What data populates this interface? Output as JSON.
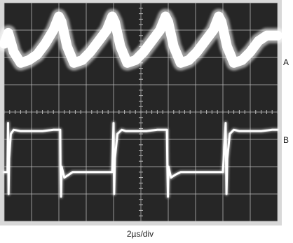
{
  "chart_data": {
    "type": "line",
    "title": "",
    "xlabel": "2µs/div",
    "ylabel": "",
    "grid": true,
    "x_divisions": 10,
    "y_divisions": 8,
    "period_div": 1.95,
    "series": [
      {
        "name": "A",
        "color": "#ffffff",
        "x": [
          0.0,
          0.15,
          0.35,
          0.6,
          0.9,
          1.2,
          1.5,
          1.8,
          2.0,
          2.1,
          2.3,
          2.55,
          2.85,
          3.15,
          3.45,
          3.75,
          3.95,
          4.05,
          4.25,
          4.5,
          4.8,
          5.1,
          5.4,
          5.7,
          5.9,
          6.0,
          6.2,
          6.45,
          6.75,
          7.05,
          7.35,
          7.65,
          7.85,
          7.95,
          8.15,
          8.4,
          8.7,
          9.0,
          9.3,
          9.6,
          10.0
        ],
        "y": [
          6.5,
          6.9,
          6.2,
          5.8,
          5.9,
          6.1,
          6.5,
          7.0,
          7.5,
          7.3,
          6.4,
          5.8,
          5.9,
          6.2,
          6.6,
          7.0,
          7.5,
          7.3,
          6.4,
          5.8,
          5.9,
          6.2,
          6.6,
          7.0,
          7.5,
          7.3,
          6.4,
          5.8,
          5.9,
          6.2,
          6.6,
          7.0,
          7.5,
          7.3,
          6.4,
          5.8,
          5.9,
          6.2,
          6.6,
          6.8,
          6.8
        ]
      },
      {
        "name": "B",
        "color": "#ffffff",
        "x": [
          0.0,
          0.12,
          0.14,
          0.16,
          0.18,
          0.24,
          0.35,
          0.6,
          1.0,
          1.4,
          1.8,
          2.05,
          2.06,
          2.08,
          2.1,
          2.2,
          2.35,
          2.5,
          2.8,
          3.2,
          3.6,
          3.95,
          4.0,
          4.02,
          4.05,
          4.14,
          4.3,
          4.45,
          4.8,
          5.2,
          5.6,
          5.95,
          5.97,
          5.99,
          6.01,
          6.1,
          6.25,
          6.45,
          6.8,
          7.2,
          7.6,
          8.0,
          8.1,
          8.13,
          8.16,
          8.25,
          8.4,
          8.6,
          9.0,
          9.4,
          9.8,
          10.0
        ],
        "y": [
          1.8,
          1.8,
          3.6,
          1.0,
          2.3,
          3.2,
          3.35,
          3.3,
          3.3,
          3.3,
          3.35,
          3.35,
          2.0,
          0.9,
          2.0,
          1.6,
          1.7,
          1.8,
          1.8,
          1.8,
          1.8,
          1.8,
          3.6,
          1.0,
          2.3,
          3.2,
          3.35,
          3.3,
          3.3,
          3.3,
          3.35,
          3.35,
          2.0,
          0.9,
          2.0,
          1.6,
          1.7,
          1.8,
          1.8,
          1.8,
          1.8,
          1.8,
          3.6,
          1.0,
          2.3,
          3.2,
          3.35,
          3.3,
          3.3,
          3.3,
          3.35,
          3.35
        ]
      }
    ],
    "channel_labels": [
      "A",
      "B"
    ],
    "time_label": "2µs/div",
    "colors": {
      "screen": "#262626",
      "grid": "#bdbdbd",
      "frame": "#d8d8d8",
      "trace": "#ffffff"
    }
  }
}
